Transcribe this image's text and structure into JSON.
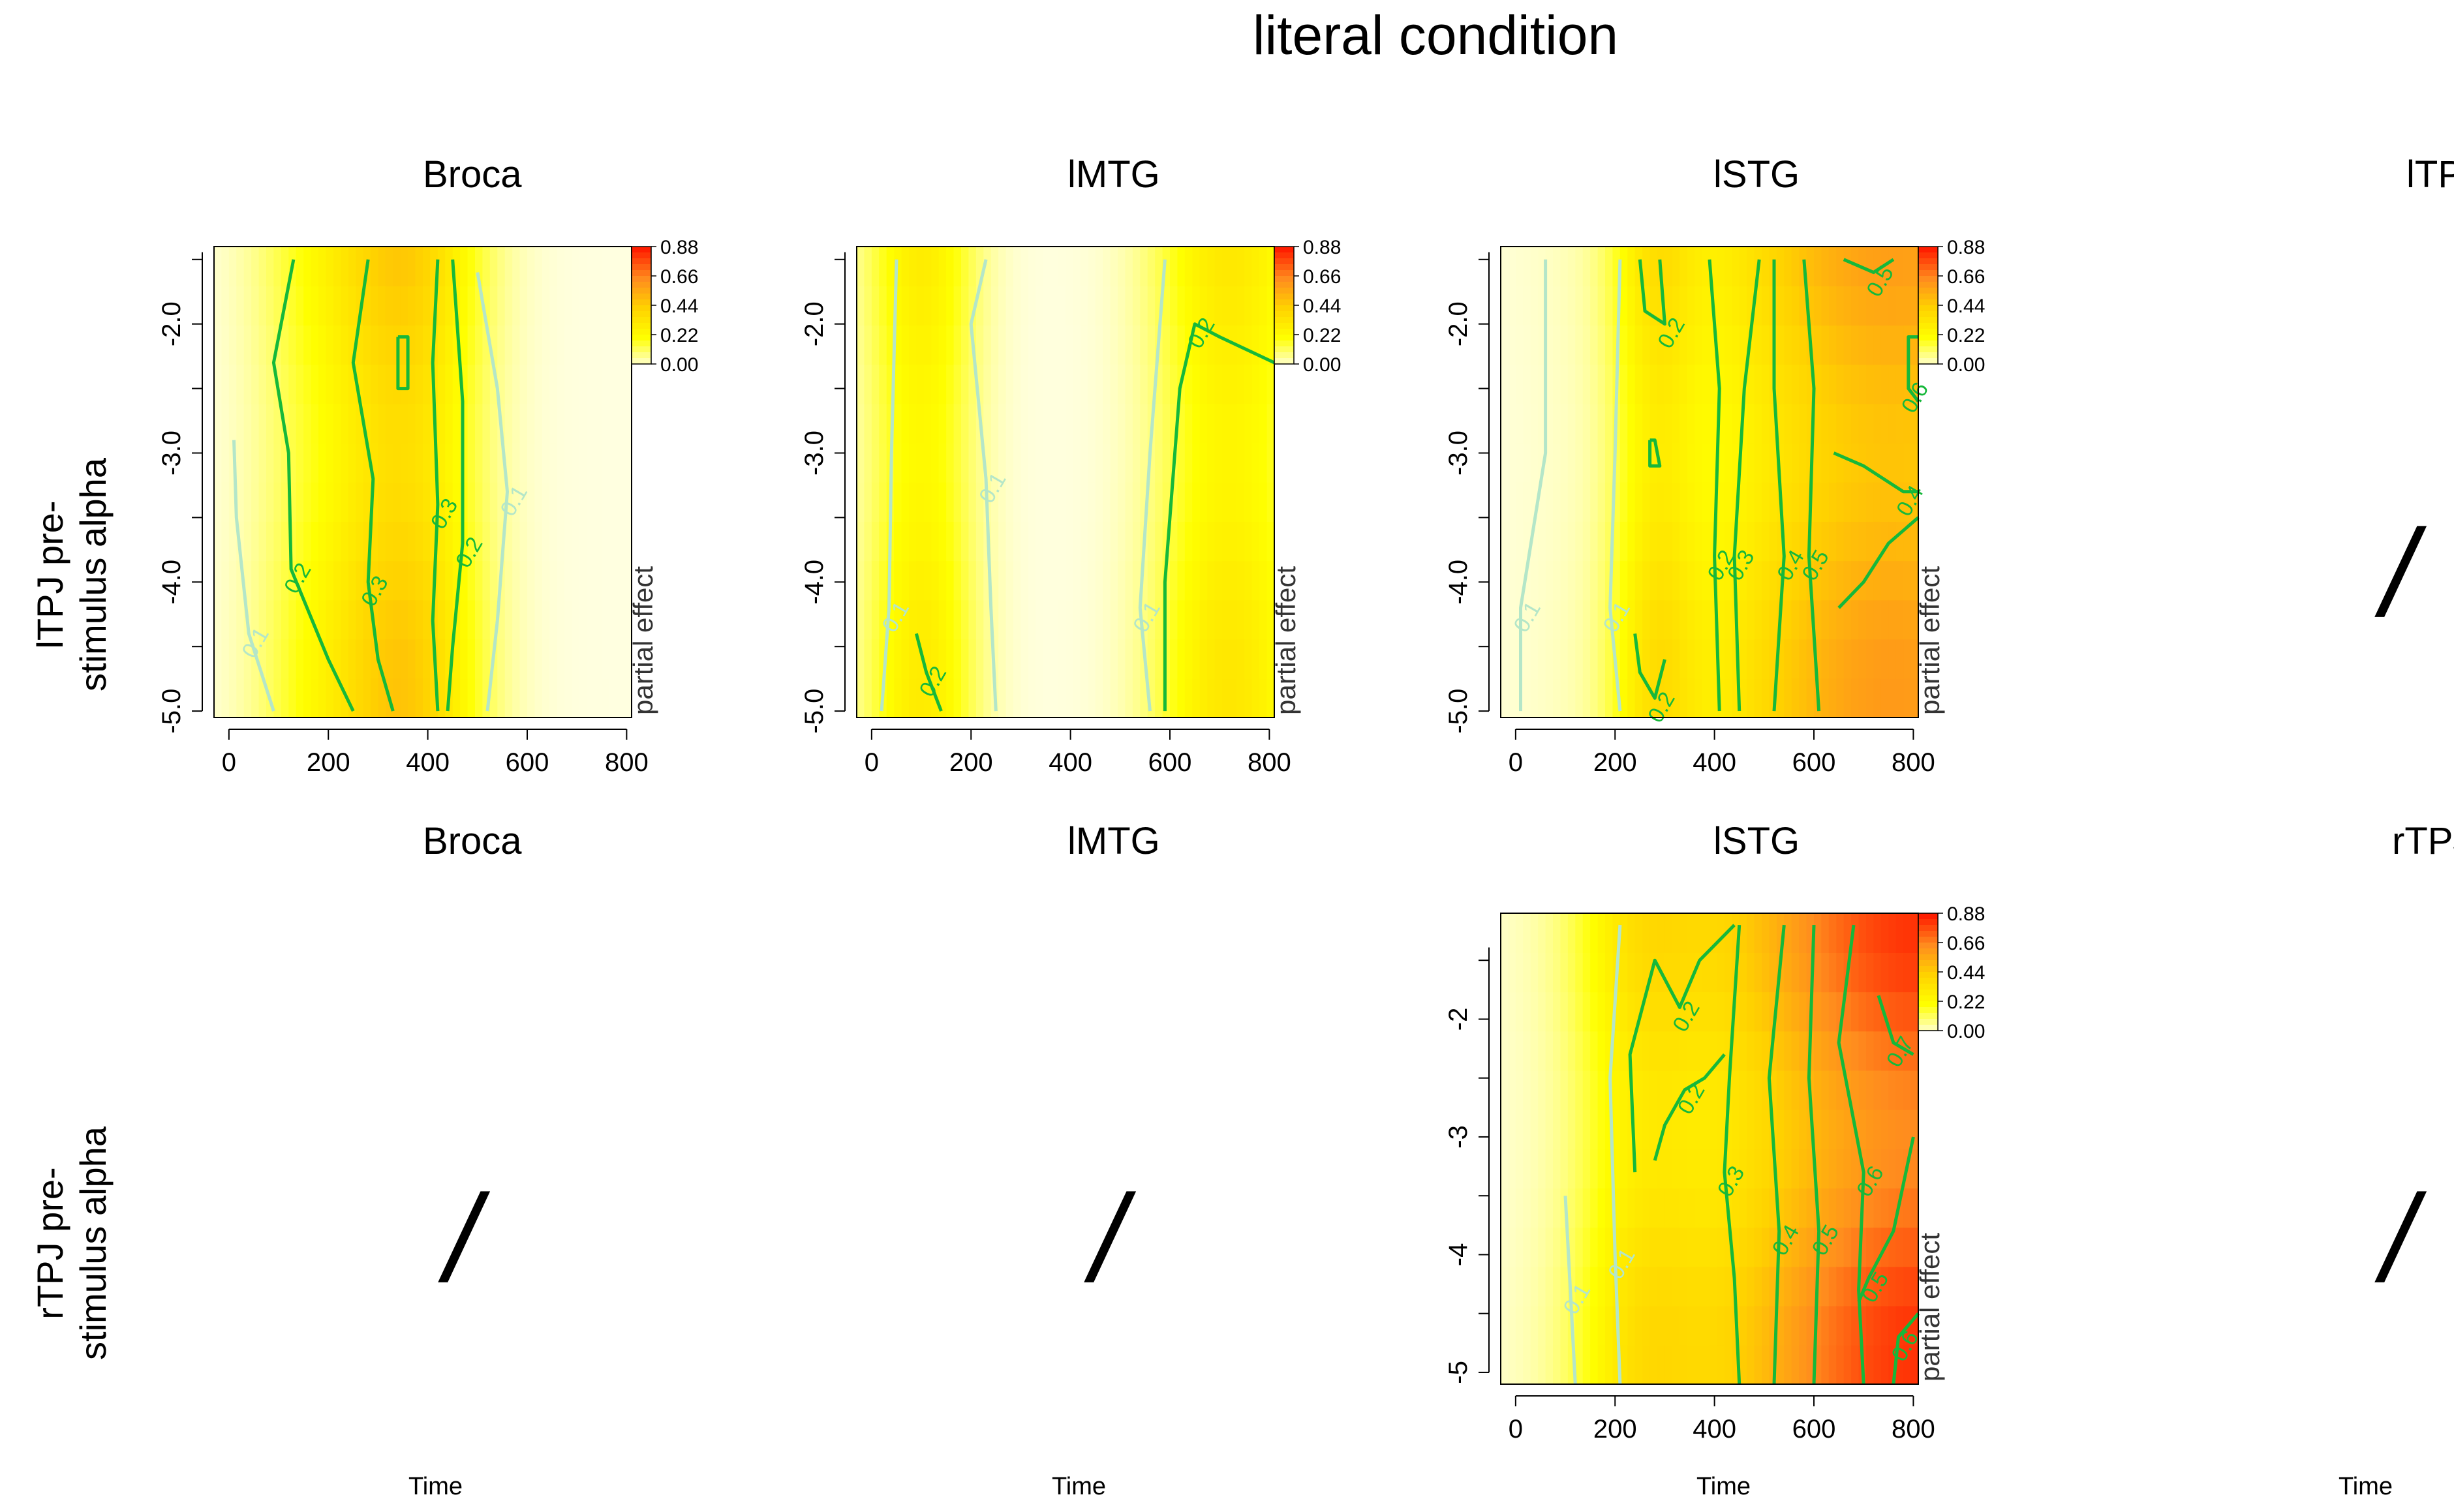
{
  "figure": {
    "title": "literal condition",
    "rows": [
      {
        "label_line1": "lTPJ pre-",
        "label_line2": "stimulus alpha"
      },
      {
        "label_line1": "rTPJ pre-",
        "label_line2": "stimulus alpha"
      }
    ],
    "empty_marker": "/",
    "xlabel": "Time"
  },
  "colors": {
    "zero": "#ffffe6",
    "scale": [
      "#ffffe0",
      "#ffff00",
      "#ffd200",
      "#ff8c1e",
      "#ff1e00"
    ],
    "contour": "#16b83a",
    "contour_faint": "#b4e6c8"
  },
  "chart_data": [
    {
      "type": "heatmap",
      "id": "r1c1",
      "title": "Broca",
      "x_ticks": [
        0,
        200,
        400,
        600,
        800
      ],
      "xlim": [
        -30,
        810
      ],
      "y_ticks": [
        "-2.0",
        "-3.0",
        "-4.0",
        "-5.0"
      ],
      "y_tick_values": [
        -2,
        -3,
        -4,
        -5
      ],
      "ylim": [
        -5.05,
        -1.4
      ],
      "colorbar": {
        "label": "partial effect",
        "ticks": [
          "0.88",
          "0.66",
          "0.44",
          "0.22",
          "0.00"
        ]
      },
      "peaks": [
        {
          "x": 350,
          "amp": 0.42,
          "sx": 110
        },
        {
          "x": 150,
          "amp": 0.12,
          "sx": 90
        }
      ],
      "contours": [
        {
          "label": "0.1",
          "faint": true,
          "points": [
            [
              10,
              -2.9
            ],
            [
              15,
              -3.5
            ],
            [
              40,
              -4.4
            ],
            [
              90,
              -5.0
            ]
          ]
        },
        {
          "label": "0.1",
          "faint": true,
          "points": [
            [
              500,
              -1.6
            ],
            [
              540,
              -2.5
            ],
            [
              560,
              -3.3
            ],
            [
              540,
              -4.3
            ],
            [
              520,
              -5.0
            ]
          ]
        },
        {
          "label": "0.2",
          "faint": false,
          "points": [
            [
              130,
              -1.5
            ],
            [
              90,
              -2.3
            ],
            [
              120,
              -3.0
            ],
            [
              125,
              -3.9
            ],
            [
              200,
              -4.6
            ],
            [
              250,
              -5.0
            ]
          ]
        },
        {
          "label": "0.2",
          "faint": false,
          "points": [
            [
              450,
              -1.5
            ],
            [
              470,
              -2.6
            ],
            [
              470,
              -3.7
            ],
            [
              450,
              -4.5
            ],
            [
              440,
              -5.0
            ]
          ]
        },
        {
          "label": "0.3",
          "faint": false,
          "points": [
            [
              280,
              -1.5
            ],
            [
              250,
              -2.3
            ],
            [
              290,
              -3.2
            ],
            [
              280,
              -4.0
            ],
            [
              300,
              -4.6
            ],
            [
              330,
              -5.0
            ]
          ]
        },
        {
          "label": "0.3",
          "faint": false,
          "points": [
            [
              420,
              -1.5
            ],
            [
              410,
              -2.3
            ],
            [
              420,
              -3.4
            ],
            [
              410,
              -4.3
            ],
            [
              420,
              -5.0
            ]
          ]
        },
        {
          "label": "",
          "faint": false,
          "points": [
            [
              340,
              -2.1
            ],
            [
              360,
              -2.1
            ],
            [
              360,
              -2.5
            ],
            [
              340,
              -2.5
            ],
            [
              340,
              -2.1
            ]
          ]
        }
      ]
    },
    {
      "type": "heatmap",
      "id": "r1c2",
      "title": "lMTG",
      "x_ticks": [
        0,
        200,
        400,
        600,
        800
      ],
      "xlim": [
        -30,
        810
      ],
      "y_ticks": [
        "-2.0",
        "-3.0",
        "-4.0",
        "-5.0"
      ],
      "y_tick_values": [
        -2,
        -3,
        -4,
        -5
      ],
      "ylim": [
        -5.05,
        -1.4
      ],
      "colorbar": {
        "label": "partial effect",
        "ticks": [
          "0.88",
          "0.66",
          "0.44",
          "0.22",
          "0.00"
        ]
      },
      "peaks": [
        {
          "x": 100,
          "amp": 0.28,
          "sx": 80
        },
        {
          "x": 720,
          "amp": 0.3,
          "sx": 110
        }
      ],
      "contours": [
        {
          "label": "0.1",
          "faint": true,
          "points": [
            [
              50,
              -1.5
            ],
            [
              40,
              -3.0
            ],
            [
              35,
              -4.2
            ],
            [
              20,
              -5.0
            ]
          ]
        },
        {
          "label": "0.1",
          "faint": true,
          "points": [
            [
              230,
              -1.5
            ],
            [
              200,
              -2.0
            ],
            [
              230,
              -3.2
            ],
            [
              240,
              -4.2
            ],
            [
              250,
              -5.0
            ]
          ]
        },
        {
          "label": "0.1",
          "faint": true,
          "points": [
            [
              590,
              -1.5
            ],
            [
              560,
              -3.0
            ],
            [
              540,
              -4.2
            ],
            [
              560,
              -5.0
            ]
          ]
        },
        {
          "label": "0.2",
          "faint": false,
          "points": [
            [
              90,
              -4.4
            ],
            [
              110,
              -4.7
            ],
            [
              140,
              -5.0
            ]
          ]
        },
        {
          "label": "0.2",
          "faint": false,
          "points": [
            [
              590,
              -5.0
            ],
            [
              590,
              -4.0
            ],
            [
              620,
              -2.5
            ],
            [
              650,
              -2.0
            ],
            [
              700,
              -2.1
            ],
            [
              810,
              -2.3
            ]
          ]
        }
      ]
    },
    {
      "type": "heatmap",
      "id": "r1c3",
      "title": "lSTG",
      "x_ticks": [
        0,
        200,
        400,
        600,
        800
      ],
      "xlim": [
        -30,
        810
      ],
      "y_ticks": [
        "-2.0",
        "-3.0",
        "-4.0",
        "-5.0"
      ],
      "y_tick_values": [
        -2,
        -3,
        -4,
        -5
      ],
      "ylim": [
        -5.05,
        -1.4
      ],
      "colorbar": {
        "label": "partial effect",
        "ticks": [
          "0.88",
          "0.66",
          "0.44",
          "0.22",
          "0.00"
        ]
      },
      "peaks": [
        {
          "x": 280,
          "amp": 0.22,
          "sx": 60
        },
        {
          "x": 760,
          "amp": 0.55,
          "sx": 280
        }
      ],
      "contours": [
        {
          "label": "0.1",
          "faint": true,
          "points": [
            [
              60,
              -1.5
            ],
            [
              60,
              -3.0
            ],
            [
              10,
              -4.2
            ],
            [
              10,
              -5.0
            ]
          ]
        },
        {
          "label": "0.1",
          "faint": true,
          "points": [
            [
              210,
              -1.5
            ],
            [
              200,
              -3.0
            ],
            [
              190,
              -4.2
            ],
            [
              210,
              -5.0
            ]
          ]
        },
        {
          "label": "0.2",
          "faint": false,
          "points": [
            [
              250,
              -1.5
            ],
            [
              260,
              -1.9
            ],
            [
              300,
              -2.0
            ],
            [
              290,
              -1.5
            ]
          ]
        },
        {
          "label": "",
          "faint": false,
          "points": [
            [
              270,
              -2.9
            ],
            [
              280,
              -2.9
            ],
            [
              290,
              -3.1
            ],
            [
              270,
              -3.1
            ],
            [
              270,
              -2.9
            ]
          ]
        },
        {
          "label": "0.2",
          "faint": false,
          "points": [
            [
              240,
              -4.4
            ],
            [
              250,
              -4.7
            ],
            [
              280,
              -4.9
            ],
            [
              300,
              -4.6
            ]
          ]
        },
        {
          "label": "0.2",
          "faint": false,
          "points": [
            [
              390,
              -1.5
            ],
            [
              410,
              -2.5
            ],
            [
              400,
              -3.8
            ],
            [
              410,
              -5.0
            ]
          ]
        },
        {
          "label": "0.3",
          "faint": false,
          "points": [
            [
              490,
              -1.5
            ],
            [
              460,
              -2.5
            ],
            [
              440,
              -3.8
            ],
            [
              450,
              -5.0
            ]
          ]
        },
        {
          "label": "0.4",
          "faint": false,
          "points": [
            [
              520,
              -1.5
            ],
            [
              520,
              -2.5
            ],
            [
              540,
              -3.8
            ],
            [
              520,
              -5.0
            ]
          ]
        },
        {
          "label": "0.5",
          "faint": false,
          "points": [
            [
              580,
              -1.5
            ],
            [
              600,
              -2.5
            ],
            [
              590,
              -3.8
            ],
            [
              610,
              -5.0
            ]
          ]
        },
        {
          "label": "0.4",
          "faint": false,
          "points": [
            [
              640,
              -3.0
            ],
            [
              700,
              -3.1
            ],
            [
              780,
              -3.3
            ],
            [
              810,
              -3.3
            ]
          ]
        },
        {
          "label": "",
          "faint": false,
          "points": [
            [
              810,
              -3.5
            ],
            [
              750,
              -3.7
            ],
            [
              700,
              -4.0
            ],
            [
              650,
              -4.2
            ]
          ]
        },
        {
          "label": "0.5",
          "faint": false,
          "points": [
            [
              660,
              -1.5
            ],
            [
              720,
              -1.6
            ],
            [
              760,
              -1.5
            ]
          ]
        },
        {
          "label": "0.6",
          "faint": false,
          "points": [
            [
              810,
              -2.1
            ],
            [
              790,
              -2.1
            ],
            [
              790,
              -2.5
            ],
            [
              810,
              -2.6
            ]
          ]
        }
      ]
    },
    {
      "type": "heatmap",
      "id": "r2c3",
      "title": "lSTG",
      "x_ticks": [
        0,
        200,
        400,
        600,
        800
      ],
      "xlim": [
        -30,
        810
      ],
      "y_ticks": [
        "-2",
        "-3",
        "-4",
        "-5"
      ],
      "y_tick_values": [
        -2,
        -3,
        -4,
        -5
      ],
      "ylim": [
        -5.1,
        -1.1
      ],
      "colorbar": {
        "label": "partial effect",
        "ticks": [
          "0.88",
          "0.66",
          "0.44",
          "0.22",
          "0.00"
        ]
      },
      "peaks": [
        {
          "x": 250,
          "amp": 0.2,
          "sx": 90
        },
        {
          "x": 820,
          "amp": 0.75,
          "sx": 320
        }
      ],
      "contours": [
        {
          "label": "0.1",
          "faint": true,
          "points": [
            [
              100,
              -3.5
            ],
            [
              110,
              -4.3
            ],
            [
              120,
              -5.1
            ]
          ]
        },
        {
          "label": "0.1",
          "faint": true,
          "points": [
            [
              210,
              -1.2
            ],
            [
              190,
              -2.5
            ],
            [
              200,
              -4.0
            ],
            [
              210,
              -5.1
            ]
          ]
        },
        {
          "label": "0.2",
          "faint": false,
          "points": [
            [
              240,
              -3.3
            ],
            [
              230,
              -2.3
            ],
            [
              280,
              -1.5
            ],
            [
              330,
              -1.9
            ],
            [
              370,
              -1.5
            ],
            [
              440,
              -1.2
            ]
          ]
        },
        {
          "label": "0.2",
          "faint": false,
          "points": [
            [
              280,
              -3.2
            ],
            [
              300,
              -2.9
            ],
            [
              340,
              -2.6
            ],
            [
              380,
              -2.5
            ],
            [
              420,
              -2.3
            ]
          ]
        },
        {
          "label": "0.3",
          "faint": false,
          "points": [
            [
              450,
              -1.2
            ],
            [
              430,
              -2.5
            ],
            [
              420,
              -3.3
            ],
            [
              440,
              -4.2
            ],
            [
              450,
              -5.1
            ]
          ]
        },
        {
          "label": "0.4",
          "faint": false,
          "points": [
            [
              540,
              -1.2
            ],
            [
              510,
              -2.5
            ],
            [
              530,
              -3.8
            ],
            [
              520,
              -5.1
            ]
          ]
        },
        {
          "label": "0.5",
          "faint": false,
          "points": [
            [
              600,
              -1.2
            ],
            [
              590,
              -2.5
            ],
            [
              610,
              -3.8
            ],
            [
              600,
              -5.1
            ]
          ]
        },
        {
          "label": "0.6",
          "faint": false,
          "points": [
            [
              680,
              -1.2
            ],
            [
              650,
              -2.2
            ],
            [
              700,
              -3.3
            ],
            [
              690,
              -4.3
            ],
            [
              700,
              -5.1
            ]
          ]
        },
        {
          "label": "0.7",
          "faint": false,
          "points": [
            [
              730,
              -1.8
            ],
            [
              760,
              -2.2
            ],
            [
              800,
              -2.3
            ]
          ]
        },
        {
          "label": "0.5",
          "faint": false,
          "points": [
            [
              800,
              -3.0
            ],
            [
              760,
              -3.8
            ],
            [
              710,
              -4.2
            ],
            [
              690,
              -4.4
            ]
          ]
        },
        {
          "label": "0.6",
          "faint": false,
          "points": [
            [
              810,
              -4.5
            ],
            [
              770,
              -4.7
            ],
            [
              760,
              -5.1
            ]
          ]
        }
      ]
    }
  ]
}
